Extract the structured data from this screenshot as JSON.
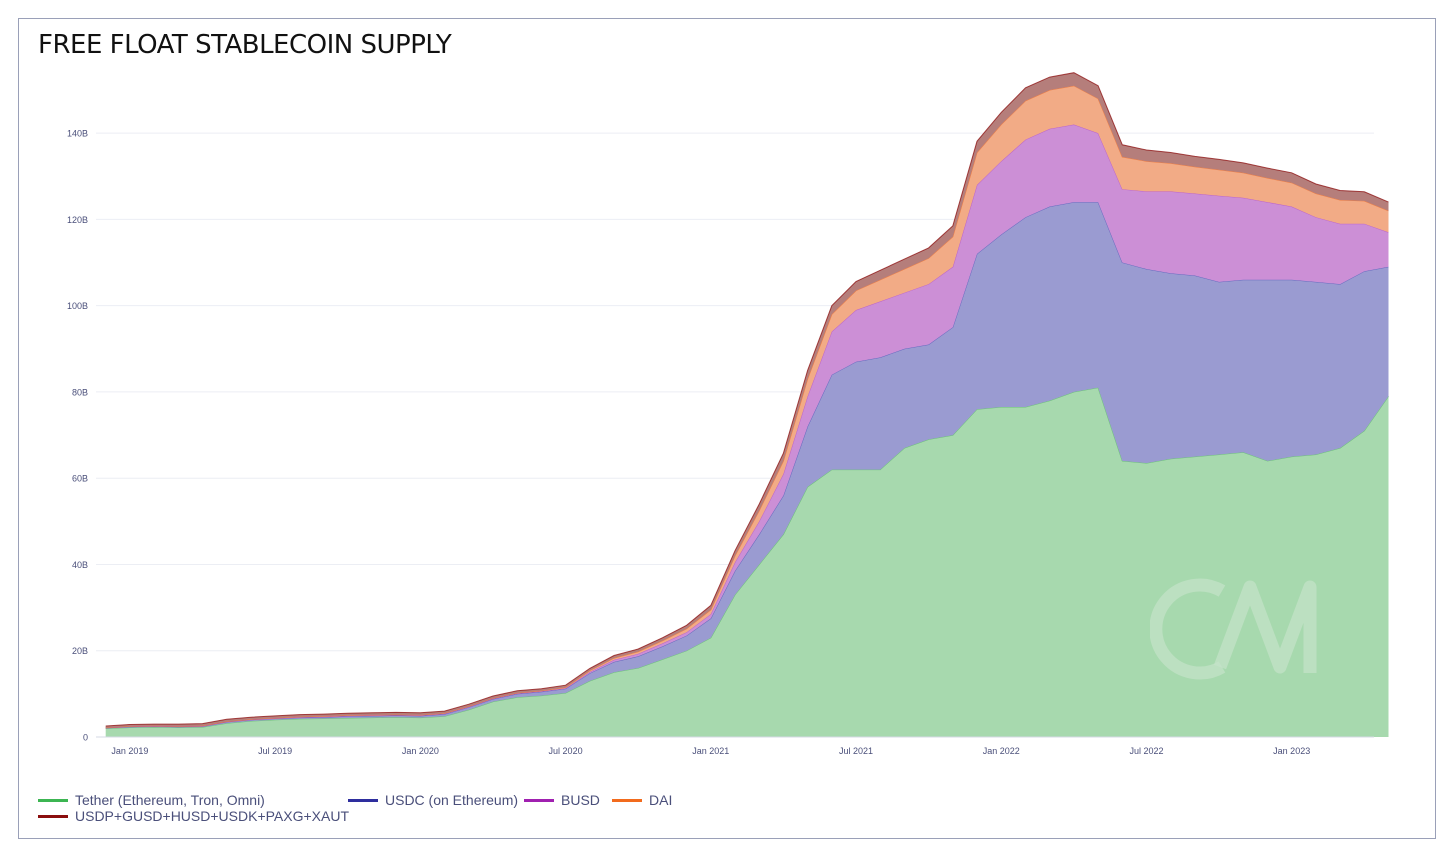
{
  "title": "FREE FLOAT STABLECOIN SUPPLY",
  "legend": [
    {
      "label": "Tether (Ethereum, Tron, Omni)",
      "color": "#3cb552"
    },
    {
      "label": "USDC (on Ethereum)",
      "color": "#2e2e9e"
    },
    {
      "label": "BUSD",
      "color": "#a020b0"
    },
    {
      "label": "DAI",
      "color": "#f26b1d"
    },
    {
      "label": "USDP+GUSD+HUSD+USDK+PAXG+XAUT",
      "color": "#8b0e0e"
    }
  ],
  "chart_data": {
    "type": "area",
    "stacked": true,
    "title": "FREE FLOAT STABLECOIN SUPPLY",
    "xlabel": "",
    "ylabel": "",
    "x_unit": "month",
    "x_range": [
      "2018-12",
      "2023-05"
    ],
    "ylim": [
      0,
      150
    ],
    "y_unit": "B",
    "y_ticks": [
      "0",
      "20B",
      "40B",
      "60B",
      "80B",
      "100B",
      "120B",
      "140B"
    ],
    "x_ticks": [
      "Jan 2019",
      "Jul 2019",
      "Jan 2020",
      "Jul 2020",
      "Jan 2021",
      "Jul 2021",
      "Jan 2022",
      "Jul 2022",
      "Jan 2023"
    ],
    "grid": true,
    "legend_position": "bottom-left",
    "x": [
      "2018-12",
      "2019-01",
      "2019-02",
      "2019-03",
      "2019-04",
      "2019-05",
      "2019-06",
      "2019-07",
      "2019-08",
      "2019-09",
      "2019-10",
      "2019-11",
      "2019-12",
      "2020-01",
      "2020-02",
      "2020-03",
      "2020-04",
      "2020-05",
      "2020-06",
      "2020-07",
      "2020-08",
      "2020-09",
      "2020-10",
      "2020-11",
      "2020-12",
      "2021-01",
      "2021-02",
      "2021-03",
      "2021-04",
      "2021-05",
      "2021-06",
      "2021-07",
      "2021-08",
      "2021-09",
      "2021-10",
      "2021-11",
      "2021-12",
      "2022-01",
      "2022-02",
      "2022-03",
      "2022-04",
      "2022-05",
      "2022-06",
      "2022-07",
      "2022-08",
      "2022-09",
      "2022-10",
      "2022-11",
      "2022-12",
      "2023-01",
      "2023-02",
      "2023-03",
      "2023-04",
      "2023-05"
    ],
    "series": [
      {
        "name": "Tether (Ethereum, Tron, Omni)",
        "values": [
          2,
          2.2,
          2.3,
          2.2,
          2.3,
          3.2,
          3.7,
          4,
          4.2,
          4.3,
          4.4,
          4.5,
          4.6,
          4.5,
          4.8,
          6.3,
          8.2,
          9.2,
          9.6,
          10.2,
          13,
          15,
          16,
          18,
          20,
          23,
          33,
          40,
          47,
          58,
          62,
          62,
          62,
          67,
          69,
          70,
          76,
          76.5,
          76.5,
          78,
          80,
          81,
          64,
          63.5,
          64.5,
          65,
          65.5,
          66,
          64,
          65,
          65.5,
          67,
          71,
          79
        ]
      },
      {
        "name": "USDC (on Ethereum)",
        "values": [
          0.1,
          0.2,
          0.2,
          0.2,
          0.2,
          0.3,
          0.3,
          0.3,
          0.3,
          0.3,
          0.4,
          0.4,
          0.4,
          0.4,
          0.5,
          0.6,
          0.6,
          0.8,
          0.9,
          1.0,
          1.8,
          2.4,
          2.7,
          3.0,
          3.5,
          4.5,
          5.5,
          7,
          9,
          14,
          22,
          25,
          26,
          23,
          22,
          25,
          36,
          40,
          44,
          45,
          44,
          43,
          46,
          45,
          43,
          42,
          40,
          40,
          42,
          41,
          40,
          38,
          37,
          30
        ]
      },
      {
        "name": "BUSD",
        "values": [
          0,
          0,
          0,
          0,
          0,
          0,
          0,
          0,
          0.1,
          0.1,
          0.1,
          0.1,
          0.1,
          0.1,
          0.1,
          0.1,
          0.1,
          0.1,
          0.1,
          0.1,
          0.3,
          0.5,
          0.6,
          0.7,
          0.8,
          1,
          2,
          3,
          5,
          7,
          10,
          12,
          13,
          13,
          14,
          14,
          16,
          17,
          18,
          18,
          18,
          16,
          17,
          18,
          19,
          19,
          20,
          19,
          18,
          17,
          15,
          14,
          11,
          8
        ]
      },
      {
        "name": "DAI",
        "values": [
          0.05,
          0.1,
          0.1,
          0.1,
          0.1,
          0.1,
          0.1,
          0.1,
          0.1,
          0.1,
          0.1,
          0.1,
          0.1,
          0.1,
          0.1,
          0.1,
          0.1,
          0.1,
          0.1,
          0.2,
          0.3,
          0.4,
          0.5,
          0.6,
          0.8,
          1,
          1.5,
          2.5,
          3,
          4,
          4,
          4.5,
          5,
          5.5,
          6,
          7,
          7.5,
          8.5,
          9,
          9,
          9,
          8,
          7.5,
          7,
          6.5,
          6.2,
          6.0,
          5.8,
          5.6,
          5.5,
          5.5,
          5.5,
          5.3,
          5.0
        ]
      },
      {
        "name": "USDP+GUSD+HUSD+USDK+PAXG+XAUT",
        "values": [
          0.4,
          0.4,
          0.4,
          0.5,
          0.5,
          0.5,
          0.5,
          0.5,
          0.5,
          0.5,
          0.5,
          0.5,
          0.5,
          0.5,
          0.5,
          0.5,
          0.5,
          0.5,
          0.5,
          0.5,
          0.5,
          0.6,
          0.6,
          0.7,
          0.8,
          1,
          1.2,
          1.5,
          1.8,
          2,
          2,
          2.1,
          2.2,
          2.3,
          2.4,
          2.5,
          2.6,
          2.8,
          3,
          3,
          3,
          3,
          2.8,
          2.6,
          2.5,
          2.4,
          2.4,
          2.3,
          2.3,
          2.3,
          2.2,
          2.2,
          2.1,
          2.0
        ]
      }
    ]
  }
}
